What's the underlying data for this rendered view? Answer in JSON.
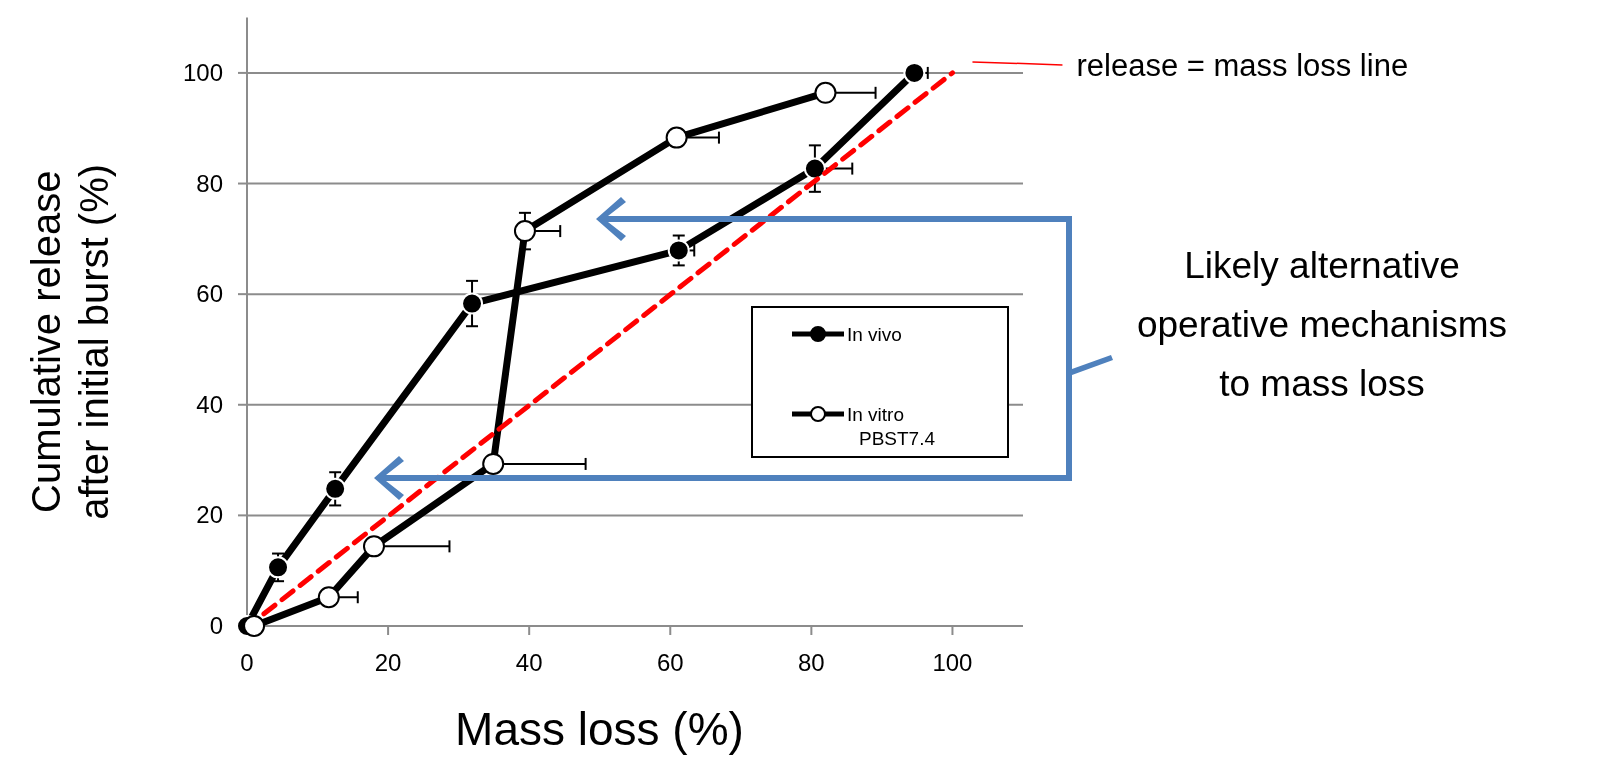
{
  "chart_data": {
    "type": "line",
    "xlabel": "Mass loss (%)",
    "ylabel": "Cumulative release after initial burst (%)",
    "xlim": [
      0,
      110
    ],
    "ylim": [
      0,
      110
    ],
    "xticks": [
      0,
      20,
      40,
      60,
      80,
      100
    ],
    "yticks": [
      0,
      20,
      40,
      60,
      80,
      100
    ],
    "grid": "y",
    "legend": "right",
    "marker": "circle",
    "line_style": "solid",
    "series": [
      {
        "name": "In vivo",
        "color": "#000000",
        "x": [
          0,
          4.4,
          12.5,
          31.9,
          61.2,
          80.5,
          94.6
        ],
        "values": [
          0,
          10.6,
          24.8,
          58.3,
          67.9,
          82.7,
          100
        ],
        "errors": [
          null,
          2.5,
          3,
          4.1,
          2.7,
          4.2,
          null
        ],
        "xerrors": [
          null,
          null,
          null,
          null,
          [
            61.2,
            63.4
          ],
          [
            80.5,
            85.8
          ],
          [
            94.6,
            96.5
          ]
        ]
      },
      {
        "name": "In vitro PBST7.4",
        "color": "#000000",
        "colors": [
          "#ffffff",
          "#ffffff",
          "#ffffff",
          "#ffffff",
          "#ffffff",
          "#ffffff",
          "#ffffff"
        ],
        "x": [
          1,
          11.6,
          18,
          34.9,
          39.4,
          60.9,
          82
        ],
        "values": [
          0,
          5.2,
          14.4,
          29.3,
          71.4,
          88.3,
          96.4
        ],
        "errors": [
          null,
          null,
          null,
          null,
          3.3,
          null,
          null
        ],
        "xerrors": [
          null,
          [
            11.6,
            15.7
          ],
          [
            18,
            28.7
          ],
          [
            34.9,
            48
          ],
          [
            39.4,
            44.4
          ],
          [
            60.9,
            66.9
          ],
          [
            82,
            89.1
          ]
        ]
      },
      {
        "name": "release = mass loss line",
        "type": "line",
        "color": "#ff0000",
        "line_style": "dashed",
        "marker": "none",
        "x": [
          2.4,
          100
        ],
        "values": [
          2.2,
          100
        ]
      }
    ],
    "annotations": [
      "Likely alternative operative mechanisms to mass loss"
    ]
  }
}
